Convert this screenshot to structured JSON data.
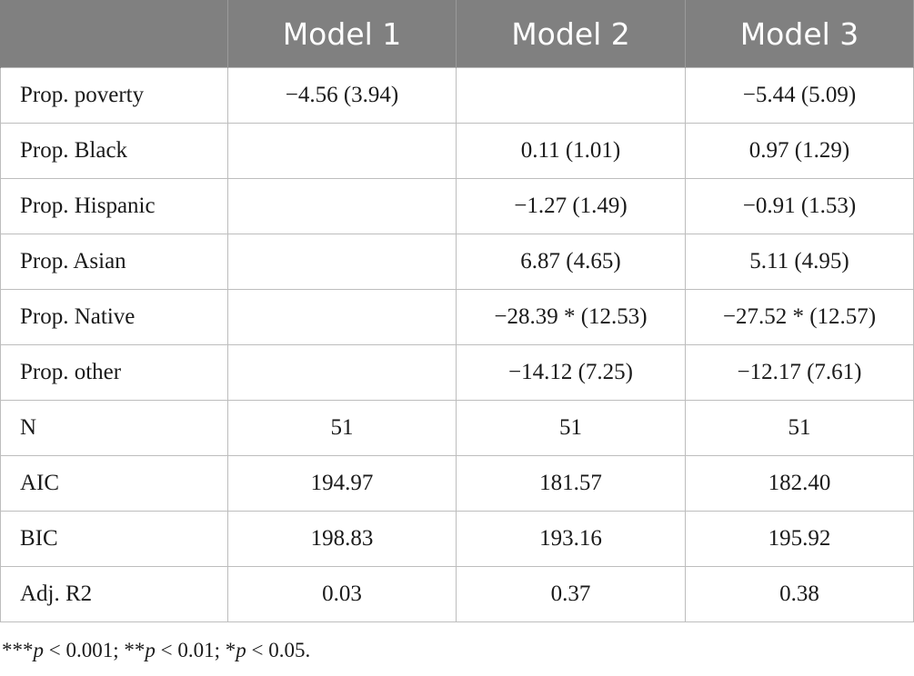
{
  "table": {
    "headers": [
      "",
      "Model 1",
      "Model 2",
      "Model 3"
    ],
    "rows": [
      {
        "label": "Prop. poverty",
        "m1": "−4.56 (3.94)",
        "m2": "",
        "m3": "−5.44 (5.09)"
      },
      {
        "label": "Prop. Black",
        "m1": "",
        "m2": "0.11 (1.01)",
        "m3": "0.97 (1.29)"
      },
      {
        "label": "Prop. Hispanic",
        "m1": "",
        "m2": "−1.27 (1.49)",
        "m3": "−0.91 (1.53)"
      },
      {
        "label": "Prop. Asian",
        "m1": "",
        "m2": "6.87 (4.65)",
        "m3": "5.11 (4.95)"
      },
      {
        "label": "Prop. Native",
        "m1": "",
        "m2": "−28.39 * (12.53)",
        "m3": "−27.52 * (12.57)"
      },
      {
        "label": "Prop. other",
        "m1": "",
        "m2": "−14.12 (7.25)",
        "m3": "−12.17 (7.61)"
      },
      {
        "label": "N",
        "m1": "51",
        "m2": "51",
        "m3": "51"
      },
      {
        "label": "AIC",
        "m1": "194.97",
        "m2": "181.57",
        "m3": "182.40"
      },
      {
        "label": "BIC",
        "m1": "198.83",
        "m2": "193.16",
        "m3": "195.92"
      },
      {
        "label": "Adj. R2",
        "m1": "0.03",
        "m2": "0.37",
        "m3": "0.38"
      }
    ]
  },
  "footnote": {
    "part1_prefix": "***",
    "p1": "p",
    "part1_suffix": " < 0.001; **",
    "p2": "p",
    "part2_suffix": " < 0.01; *",
    "p3": "p",
    "part3_suffix": " < 0.05."
  }
}
